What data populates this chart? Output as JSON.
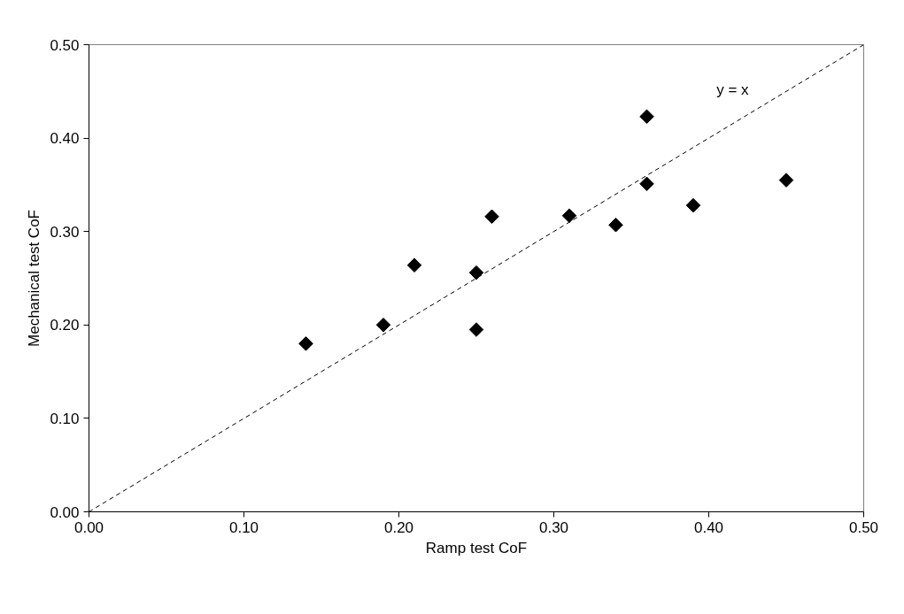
{
  "chart_data": {
    "type": "scatter",
    "xlabel": "Ramp test CoF",
    "ylabel": "Mechanical test CoF",
    "xlim": [
      0,
      0.5
    ],
    "ylim": [
      0,
      0.5
    ],
    "xticks": [
      {
        "value": 0,
        "label": "0.00"
      },
      {
        "value": 0.1,
        "label": "0.10"
      },
      {
        "value": 0.2,
        "label": "0.20"
      },
      {
        "value": 0.3,
        "label": "0.30"
      },
      {
        "value": 0.4,
        "label": "0.40"
      },
      {
        "value": 0.5,
        "label": "0.50"
      }
    ],
    "yticks": [
      {
        "value": 0,
        "label": "0.00"
      },
      {
        "value": 0.1,
        "label": "0.10"
      },
      {
        "value": 0.2,
        "label": "0.20"
      },
      {
        "value": 0.3,
        "label": "0.30"
      },
      {
        "value": 0.4,
        "label": "0.40"
      },
      {
        "value": 0.5,
        "label": "0.50"
      }
    ],
    "grid": false,
    "marker": "diamond",
    "series": [
      {
        "color": "#000000",
        "x": [
          0.14,
          0.19,
          0.21,
          0.25,
          0.25,
          0.26,
          0.31,
          0.34,
          0.36,
          0.36,
          0.39,
          0.45
        ],
        "values": [
          0.18,
          0.2,
          0.264,
          0.256,
          0.195,
          0.316,
          0.317,
          0.307,
          0.423,
          0.351,
          0.328,
          0.355
        ]
      },
      {
        "type": "line",
        "color": "#000000",
        "line_style": "dashed",
        "marker": "none",
        "x": [
          0,
          0.5
        ],
        "values": [
          0,
          0.5
        ]
      }
    ],
    "annotations": [
      "y = x"
    ]
  }
}
